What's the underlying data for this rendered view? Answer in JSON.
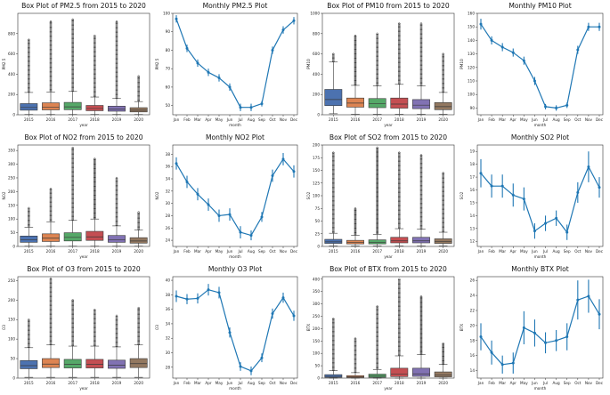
{
  "chart_data": [
    {
      "id": "box-pm25",
      "type": "box",
      "title": "Box Plot of PM2.5 from 2015 to 2020",
      "xlabel": "year",
      "ylabel": "PM2.5",
      "categories": [
        "2015",
        "2016",
        "2017",
        "2018",
        "2019",
        "2020"
      ],
      "ylim": [
        0,
        1000
      ],
      "yticks": [
        0,
        200,
        400,
        600,
        800
      ],
      "boxes": [
        {
          "q1": 45,
          "median": 72,
          "q3": 110,
          "whislo": 3,
          "whishi": 220,
          "fliermax": 740
        },
        {
          "q1": 48,
          "median": 75,
          "q3": 118,
          "whislo": 3,
          "whishi": 225,
          "fliermax": 920
        },
        {
          "q1": 50,
          "median": 78,
          "q3": 122,
          "whislo": 3,
          "whishi": 230,
          "fliermax": 940
        },
        {
          "q1": 40,
          "median": 62,
          "q3": 92,
          "whislo": 3,
          "whishi": 175,
          "fliermax": 780
        },
        {
          "q1": 35,
          "median": 55,
          "q3": 85,
          "whislo": 3,
          "whishi": 160,
          "fliermax": 920
        },
        {
          "q1": 28,
          "median": 45,
          "q3": 70,
          "whislo": 3,
          "whishi": 130,
          "fliermax": 380
        }
      ]
    },
    {
      "id": "line-pm25",
      "type": "line",
      "title": "Monthly PM2.5 Plot",
      "xlabel": "month",
      "ylabel": "PM2.5",
      "categories": [
        "Jan",
        "Feb",
        "Mar",
        "Apr",
        "May",
        "Jun",
        "Jul",
        "Aug",
        "Sep",
        "Oct",
        "Nov",
        "Dec"
      ],
      "values": [
        97,
        81,
        73,
        68,
        65,
        60,
        49,
        49,
        51,
        80,
        91,
        96
      ],
      "err": [
        2,
        2,
        2,
        2,
        2,
        2,
        2,
        2,
        1.5,
        2,
        2,
        2
      ],
      "ylim": [
        45,
        100
      ],
      "yticks": [
        50,
        60,
        70,
        80,
        90,
        100
      ]
    },
    {
      "id": "box-pm10",
      "type": "box",
      "title": "Box Plot of PM10 from 2015 to 2020",
      "xlabel": "year",
      "ylabel": "PM10",
      "categories": [
        "2015",
        "2016",
        "2017",
        "2018",
        "2019",
        "2020"
      ],
      "ylim": [
        0,
        1000
      ],
      "yticks": [
        0,
        200,
        400,
        600,
        800,
        1000
      ],
      "boxes": [
        {
          "q1": 90,
          "median": 150,
          "q3": 250,
          "whislo": 10,
          "whishi": 520,
          "fliermax": 600
        },
        {
          "q1": 75,
          "median": 115,
          "q3": 165,
          "whislo": 5,
          "whishi": 290,
          "fliermax": 780
        },
        {
          "q1": 70,
          "median": 110,
          "q3": 160,
          "whislo": 5,
          "whishi": 285,
          "fliermax": 800
        },
        {
          "q1": 65,
          "median": 105,
          "q3": 165,
          "whislo": 5,
          "whishi": 300,
          "fliermax": 900
        },
        {
          "q1": 60,
          "median": 95,
          "q3": 150,
          "whislo": 5,
          "whishi": 285,
          "fliermax": 900
        },
        {
          "q1": 50,
          "median": 80,
          "q3": 120,
          "whislo": 5,
          "whishi": 220,
          "fliermax": 600
        }
      ]
    },
    {
      "id": "line-pm10",
      "type": "line",
      "title": "Monthly PM10 Plot",
      "xlabel": "month",
      "ylabel": "PM10",
      "categories": [
        "Jan",
        "Feb",
        "Mar",
        "Apr",
        "May",
        "Jun",
        "Jul",
        "Aug",
        "Sep",
        "Oct",
        "Nov",
        "Dec"
      ],
      "values": [
        152,
        140,
        135,
        131,
        125,
        110,
        91,
        90,
        92,
        133,
        150,
        150
      ],
      "err": [
        4,
        3,
        3,
        3,
        3,
        3,
        2,
        2,
        2,
        3,
        3,
        3
      ],
      "ylim": [
        85,
        160
      ],
      "yticks": [
        90,
        100,
        110,
        120,
        130,
        140,
        150,
        160
      ]
    },
    {
      "id": "box-no2",
      "type": "box",
      "title": "Box Plot of NO2 from 2015 to 2020",
      "xlabel": "year",
      "ylabel": "NO2",
      "categories": [
        "2015",
        "2016",
        "2017",
        "2018",
        "2019",
        "2020"
      ],
      "ylim": [
        0,
        370
      ],
      "yticks": [
        0,
        50,
        100,
        150,
        200,
        250,
        300,
        350
      ],
      "boxes": [
        {
          "q1": 15,
          "median": 25,
          "q3": 38,
          "whislo": 1,
          "whishi": 70,
          "fliermax": 140
        },
        {
          "q1": 18,
          "median": 30,
          "q3": 46,
          "whislo": 1,
          "whishi": 90,
          "fliermax": 210
        },
        {
          "q1": 20,
          "median": 33,
          "q3": 50,
          "whislo": 1,
          "whishi": 95,
          "fliermax": 360
        },
        {
          "q1": 22,
          "median": 35,
          "q3": 55,
          "whislo": 1,
          "whishi": 100,
          "fliermax": 320
        },
        {
          "q1": 15,
          "median": 25,
          "q3": 40,
          "whislo": 1,
          "whishi": 75,
          "fliermax": 250
        },
        {
          "q1": 12,
          "median": 20,
          "q3": 32,
          "whislo": 1,
          "whishi": 60,
          "fliermax": 125
        }
      ]
    },
    {
      "id": "line-no2",
      "type": "line",
      "title": "Monthly NO2 Plot",
      "xlabel": "month",
      "ylabel": "NO2",
      "categories": [
        "Jan",
        "Feb",
        "Mar",
        "Apr",
        "May",
        "Jun",
        "Jul",
        "Aug",
        "Sep",
        "Oct",
        "Nov",
        "Dec"
      ],
      "values": [
        36.5,
        33.5,
        31.5,
        29.8,
        28.0,
        28.2,
        25.3,
        24.8,
        27.8,
        34.5,
        37.2,
        35.2
      ],
      "err": [
        1,
        1,
        1,
        1,
        1,
        1,
        1,
        0.8,
        0.8,
        1,
        1,
        1
      ],
      "ylim": [
        23,
        39.5
      ],
      "yticks": [
        24,
        26,
        28,
        30,
        32,
        34,
        36,
        38
      ]
    },
    {
      "id": "box-so2",
      "type": "box",
      "title": "Box Plot of SO2 from 2015 to 2020",
      "xlabel": "year",
      "ylabel": "SO2",
      "categories": [
        "2015",
        "2016",
        "2017",
        "2018",
        "2019",
        "2020"
      ],
      "ylim": [
        0,
        200
      ],
      "yticks": [
        0,
        25,
        50,
        75,
        100,
        125,
        150,
        175,
        200
      ],
      "boxes": [
        {
          "q1": 6,
          "median": 9,
          "q3": 14,
          "whislo": 1,
          "whishi": 26,
          "fliermax": 185
        },
        {
          "q1": 5,
          "median": 8,
          "q3": 12,
          "whislo": 1,
          "whishi": 22,
          "fliermax": 75
        },
        {
          "q1": 5,
          "median": 8,
          "q3": 13,
          "whislo": 1,
          "whishi": 24,
          "fliermax": 195
        },
        {
          "q1": 7,
          "median": 11,
          "q3": 18,
          "whislo": 1,
          "whishi": 35,
          "fliermax": 185
        },
        {
          "q1": 7,
          "median": 11,
          "q3": 18,
          "whislo": 1,
          "whishi": 34,
          "fliermax": 180
        },
        {
          "q1": 6,
          "median": 10,
          "q3": 15,
          "whislo": 1,
          "whishi": 28,
          "fliermax": 145
        }
      ]
    },
    {
      "id": "line-so2",
      "type": "line",
      "title": "Monthly SO2 Plot",
      "xlabel": "month",
      "ylabel": "SO2",
      "categories": [
        "Jan",
        "Feb",
        "Mar",
        "Apr",
        "May",
        "Jun",
        "Jul",
        "Aug",
        "Sep",
        "Oct",
        "Nov",
        "Dec"
      ],
      "values": [
        17.3,
        16.3,
        16.3,
        15.6,
        15.3,
        12.8,
        13.4,
        13.8,
        12.7,
        15.8,
        17.8,
        16.2
      ],
      "err": [
        1.1,
        0.9,
        0.9,
        0.9,
        0.9,
        0.6,
        0.6,
        0.6,
        0.6,
        0.8,
        1.2,
        0.8
      ],
      "ylim": [
        11.6,
        19.5
      ],
      "yticks": [
        12,
        13,
        14,
        15,
        16,
        17,
        18,
        19
      ]
    },
    {
      "id": "box-o3",
      "type": "box",
      "title": "Box Plot of O3 from 2015 to 2020",
      "xlabel": "year",
      "ylabel": "O3",
      "categories": [
        "2015",
        "2016",
        "2017",
        "2018",
        "2019",
        "2020"
      ],
      "ylim": [
        0,
        260
      ],
      "yticks": [
        0,
        50,
        100,
        150,
        200,
        250
      ],
      "boxes": [
        {
          "q1": 24,
          "median": 32,
          "q3": 45,
          "whislo": 2,
          "whishi": 78,
          "fliermax": 150
        },
        {
          "q1": 27,
          "median": 36,
          "q3": 50,
          "whislo": 2,
          "whishi": 85,
          "fliermax": 255
        },
        {
          "q1": 26,
          "median": 35,
          "q3": 48,
          "whislo": 2,
          "whishi": 82,
          "fliermax": 200
        },
        {
          "q1": 26,
          "median": 35,
          "q3": 48,
          "whislo": 2,
          "whishi": 82,
          "fliermax": 175
        },
        {
          "q1": 25,
          "median": 33,
          "q3": 46,
          "whislo": 2,
          "whishi": 80,
          "fliermax": 160
        },
        {
          "q1": 27,
          "median": 37,
          "q3": 50,
          "whislo": 2,
          "whishi": 85,
          "fliermax": 180
        }
      ]
    },
    {
      "id": "line-o3",
      "type": "line",
      "title": "Monthly O3 Plot",
      "xlabel": "month",
      "ylabel": "O3",
      "categories": [
        "Jan",
        "Feb",
        "Mar",
        "Apr",
        "May",
        "Jun",
        "Jul",
        "Aug",
        "Sep",
        "Oct",
        "Nov",
        "Dec"
      ],
      "values": [
        37.8,
        37.4,
        37.5,
        38.7,
        38.3,
        32.8,
        28.1,
        27.5,
        29.3,
        35.4,
        37.6,
        35.1
      ],
      "err": [
        0.8,
        0.7,
        0.7,
        0.8,
        0.8,
        0.7,
        0.6,
        0.6,
        0.6,
        0.7,
        0.7,
        0.7
      ],
      "ylim": [
        26.5,
        40.5
      ],
      "yticks": [
        28,
        30,
        32,
        34,
        36,
        38,
        40
      ]
    },
    {
      "id": "box-btx",
      "type": "box",
      "title": "Box Plot of BTX from 2015 to 2020",
      "xlabel": "year",
      "ylabel": "BTX",
      "categories": [
        "2015",
        "2016",
        "2017",
        "2018",
        "2019",
        "2020"
      ],
      "ylim": [
        0,
        410
      ],
      "yticks": [
        0,
        50,
        100,
        150,
        200,
        250,
        300,
        350,
        400
      ],
      "boxes": [
        {
          "q1": 3,
          "median": 7,
          "q3": 14,
          "whislo": 0,
          "whishi": 30,
          "fliermax": 240
        },
        {
          "q1": 2,
          "median": 5,
          "q3": 10,
          "whislo": 0,
          "whishi": 22,
          "fliermax": 160
        },
        {
          "q1": 3,
          "median": 8,
          "q3": 16,
          "whislo": 0,
          "whishi": 35,
          "fliermax": 290
        },
        {
          "q1": 6,
          "median": 16,
          "q3": 40,
          "whislo": 0,
          "whishi": 90,
          "fliermax": 400
        },
        {
          "q1": 7,
          "median": 17,
          "q3": 40,
          "whislo": 0,
          "whishi": 95,
          "fliermax": 330
        },
        {
          "q1": 5,
          "median": 12,
          "q3": 25,
          "whislo": 0,
          "whishi": 55,
          "fliermax": 140
        }
      ]
    },
    {
      "id": "line-btx",
      "type": "line",
      "title": "Monthly BTX Plot",
      "xlabel": "month",
      "ylabel": "BTX",
      "categories": [
        "Jan",
        "Feb",
        "Mar",
        "Apr",
        "May",
        "Jun",
        "Jul",
        "Aug",
        "Sep",
        "Oct",
        "Nov",
        "Dec"
      ],
      "values": [
        18.5,
        16.4,
        14.8,
        15.0,
        19.7,
        19.0,
        17.7,
        18.0,
        18.5,
        23.4,
        23.9,
        21.5
      ],
      "err": [
        1.8,
        1.6,
        1.2,
        1.4,
        2.2,
        1.8,
        1.4,
        1.4,
        1.8,
        2.6,
        2.2,
        2.0
      ],
      "ylim": [
        13,
        26.5
      ],
      "yticks": [
        14,
        16,
        18,
        20,
        22,
        24,
        26
      ]
    }
  ],
  "colors": {
    "boxes": [
      "#4c72b0",
      "#dd8452",
      "#55a868",
      "#c44e52",
      "#8172b3",
      "#937860"
    ],
    "line": "#1f77b4",
    "axis": "#333333",
    "flier": "#444444"
  }
}
